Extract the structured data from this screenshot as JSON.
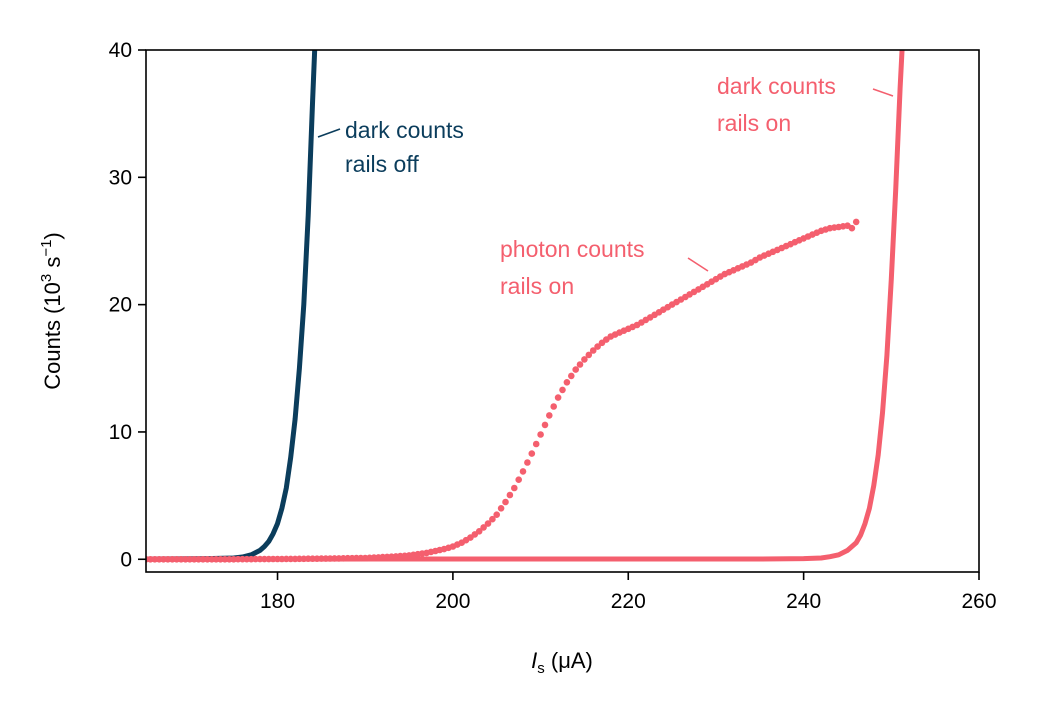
{
  "chart_data": {
    "type": "line",
    "xlabel": {
      "symbol": "I",
      "subscript": "s",
      "unit": " (μA)"
    },
    "ylabel": {
      "prefix": "Counts (10",
      "sup1": "3",
      "mid": " s",
      "sup2": "−1",
      "suffix": ")"
    },
    "xlim": [
      165,
      260
    ],
    "ylim": [
      -1,
      40
    ],
    "xticks": [
      180,
      200,
      220,
      240,
      260
    ],
    "yticks": [
      0,
      10,
      20,
      30,
      40
    ],
    "colors": {
      "rails_off": "#0b3d5c",
      "rails_on": "#f45f6e"
    },
    "series": [
      {
        "key": "dark_off",
        "style": "line",
        "color": "#0b3d5c",
        "annotation": [
          "dark counts",
          "rails off"
        ],
        "x": [
          165,
          172,
          175,
          176,
          177,
          178,
          178.5,
          179,
          179.5,
          180,
          180.5,
          181,
          181.5,
          182,
          182.5,
          183,
          183.5,
          184,
          184.3
        ],
        "y": [
          0.02,
          0.05,
          0.1,
          0.18,
          0.35,
          0.7,
          1.0,
          1.4,
          2.0,
          2.8,
          4.0,
          5.6,
          8.0,
          11.0,
          15.0,
          20.0,
          27.0,
          36.0,
          41.0
        ]
      },
      {
        "key": "dark_on",
        "style": "line",
        "color": "#f45f6e",
        "annotation": [
          "dark counts",
          "rails on"
        ],
        "x": [
          165,
          235,
          240,
          242,
          243,
          244,
          245,
          246,
          246.5,
          247,
          247.5,
          248,
          248.5,
          249,
          249.5,
          250,
          250.5,
          251,
          251.3
        ],
        "y": [
          0.01,
          0.02,
          0.05,
          0.1,
          0.2,
          0.35,
          0.7,
          1.3,
          1.9,
          2.8,
          4.0,
          5.8,
          8.2,
          11.5,
          16.0,
          22.0,
          29.0,
          37.0,
          41.0
        ]
      },
      {
        "key": "photon_on",
        "style": "points",
        "color": "#f45f6e",
        "annotation": [
          "photon counts",
          "rails on"
        ],
        "x": [
          165,
          170,
          175,
          180,
          185,
          190,
          193,
          195,
          197,
          199,
          200,
          201,
          202,
          203,
          204,
          205,
          206,
          207,
          208,
          209,
          210,
          211,
          212,
          213,
          214,
          215,
          216,
          217,
          218,
          219,
          220,
          221,
          222,
          223,
          224,
          225,
          226,
          227,
          228,
          229,
          230,
          231,
          232,
          233,
          234,
          235,
          236,
          237,
          238,
          239,
          240,
          241,
          242,
          243,
          244,
          245,
          245.5,
          246
        ],
        "y": [
          0.0,
          0.0,
          0.0,
          0.02,
          0.05,
          0.1,
          0.2,
          0.3,
          0.5,
          0.8,
          1.0,
          1.3,
          1.7,
          2.2,
          2.8,
          3.5,
          4.5,
          5.6,
          6.9,
          8.3,
          9.8,
          11.3,
          12.7,
          13.9,
          14.9,
          15.7,
          16.4,
          17.0,
          17.5,
          17.8,
          18.1,
          18.4,
          18.8,
          19.2,
          19.6,
          20.0,
          20.4,
          20.8,
          21.2,
          21.6,
          22.0,
          22.4,
          22.7,
          23.0,
          23.3,
          23.7,
          24.0,
          24.3,
          24.6,
          24.9,
          25.2,
          25.5,
          25.8,
          26.0,
          26.1,
          26.2,
          26.0,
          26.5
        ]
      }
    ]
  }
}
